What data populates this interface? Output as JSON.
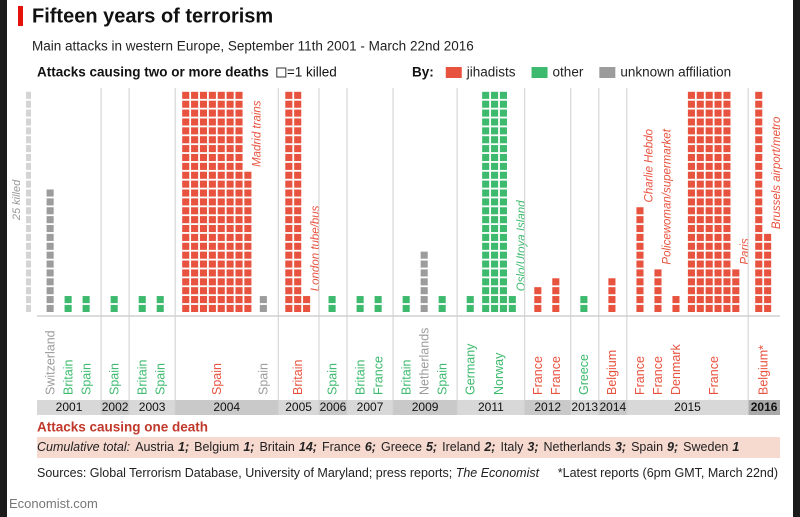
{
  "chart_data": {
    "type": "unit-stack",
    "title": "Fifteen years of terrorism",
    "subtitle": "Main attacks in western Europe, September 11th 2001 - March 22nd 2016",
    "heading": "Attacks causing two or more deaths",
    "unit_note": "=1 killed",
    "legend_label": "By:",
    "groups": [
      {
        "name": "jihadists",
        "color": "#e8533f"
      },
      {
        "name": "other",
        "color": "#3dba6e"
      },
      {
        "name": "unknown affiliation",
        "color": "#9c9c9c"
      }
    ],
    "column_scale": {
      "value": 25,
      "label": "25 killed"
    },
    "years": [
      {
        "year": "2001",
        "attacks": [
          {
            "country": "Switzerland",
            "group": "unknown affiliation",
            "deaths": 14
          },
          {
            "country": "Britain",
            "group": "other",
            "deaths": 2
          },
          {
            "country": "Spain",
            "group": "other",
            "deaths": 2
          }
        ]
      },
      {
        "year": "2002",
        "attacks": [
          {
            "country": "Spain",
            "group": "other",
            "deaths": 2
          }
        ]
      },
      {
        "year": "2003",
        "attacks": [
          {
            "country": "Britain",
            "group": "other",
            "deaths": 2
          },
          {
            "country": "Spain",
            "group": "other",
            "deaths": 2
          }
        ]
      },
      {
        "year": "2004",
        "attacks": [
          {
            "country": "Spain",
            "group": "jihadists",
            "deaths": 191,
            "label": "Madrid trains"
          },
          {
            "country": "Spain",
            "group": "unknown affiliation",
            "deaths": 2
          }
        ]
      },
      {
        "year": "2005",
        "attacks": [
          {
            "country": "Britain",
            "group": "jihadists",
            "deaths": 52,
            "label": "London tube/bus"
          }
        ]
      },
      {
        "year": "2006",
        "attacks": [
          {
            "country": "Spain",
            "group": "other",
            "deaths": 2
          }
        ]
      },
      {
        "year": "2007",
        "attacks": [
          {
            "country": "Britain",
            "group": "other",
            "deaths": 2
          },
          {
            "country": "France",
            "group": "other",
            "deaths": 2
          }
        ]
      },
      {
        "year": "2009",
        "attacks": [
          {
            "country": "Britain",
            "group": "other",
            "deaths": 2
          },
          {
            "country": "Netherlands",
            "group": "unknown affiliation",
            "deaths": 7
          },
          {
            "country": "Spain",
            "group": "other",
            "deaths": 2
          }
        ]
      },
      {
        "year": "2011",
        "attacks": [
          {
            "country": "Germany",
            "group": "other",
            "deaths": 2
          },
          {
            "country": "Norway",
            "group": "other",
            "deaths": 77,
            "label": "Oslo/Utoya Island"
          }
        ]
      },
      {
        "year": "2012",
        "attacks": [
          {
            "country": "France",
            "group": "jihadists",
            "deaths": 3
          },
          {
            "country": "France",
            "group": "jihadists",
            "deaths": 4
          }
        ]
      },
      {
        "year": "2013",
        "attacks": [
          {
            "country": "Greece",
            "group": "other",
            "deaths": 2
          }
        ]
      },
      {
        "year": "2014",
        "attacks": [
          {
            "country": "Belgium",
            "group": "jihadists",
            "deaths": 4
          }
        ]
      },
      {
        "year": "2015",
        "attacks": [
          {
            "country": "France",
            "group": "jihadists",
            "deaths": 12,
            "label": "Charlie Hebdo"
          },
          {
            "country": "France",
            "group": "jihadists",
            "deaths": 5,
            "label": "Policewoman/supermarket"
          },
          {
            "country": "Denmark",
            "group": "jihadists",
            "deaths": 2
          },
          {
            "country": "France",
            "group": "jihadists",
            "deaths": 130,
            "label": "Paris"
          }
        ]
      },
      {
        "year": "2016",
        "attacks": [
          {
            "country": "Belgium*",
            "group": "jihadists",
            "deaths": 34,
            "label": "Brussels airport/metro"
          }
        ]
      }
    ],
    "one_death_heading": "Attacks causing one death",
    "cumulative_label": "Cumulative total:",
    "cumulative_countries": [
      "Austria",
      "Belgium",
      "Britain",
      "France",
      "Greece",
      "Ireland",
      "Italy",
      "Netherlands",
      "Spain",
      "Sweden"
    ],
    "cumulative_counts": [
      1,
      1,
      14,
      6,
      5,
      2,
      3,
      3,
      9,
      1
    ],
    "cumulative_count_labels": [
      "1;",
      "1;",
      "14;",
      "6;",
      "5;",
      "2;",
      "3;",
      "3;",
      "9;",
      "1"
    ],
    "sources": "Sources: Global Terrorism Database, University of Maryland; press reports;",
    "sources_italic": "The Economist",
    "footnote": "*Latest reports (6pm GMT, March 22nd)",
    "brand": "Economist.com"
  }
}
